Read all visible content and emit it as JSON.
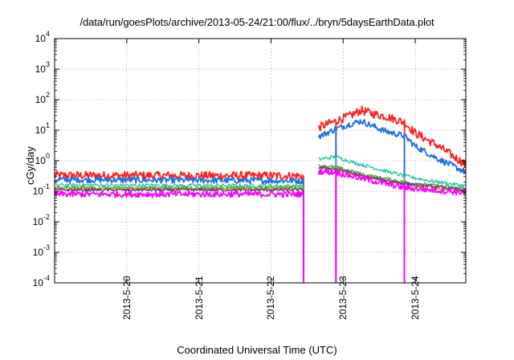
{
  "chart_data": {
    "type": "line",
    "title": "/data/run/goesPlots/archive/2013-05-24/21:00/flux/../bryn/5daysEarthData.plot",
    "xlabel": "Coordinated Universal Time (UTC)",
    "ylabel": "cGy/day",
    "yscale": "log",
    "ylim": [
      0.0001,
      10000
    ],
    "xlim": [
      0,
      5.7
    ],
    "grid": true,
    "y_ticks": [
      {
        "base": "10",
        "exp": "-4",
        "value": 0.0001
      },
      {
        "base": "10",
        "exp": "-3",
        "value": 0.001
      },
      {
        "base": "10",
        "exp": "-2",
        "value": 0.01
      },
      {
        "base": "10",
        "exp": "-1",
        "value": 0.1
      },
      {
        "base": "10",
        "exp": "0",
        "value": 1
      },
      {
        "base": "10",
        "exp": "1",
        "value": 10
      },
      {
        "base": "10",
        "exp": "2",
        "value": 100
      },
      {
        "base": "10",
        "exp": "3",
        "value": 1000
      },
      {
        "base": "10",
        "exp": "4",
        "value": 10000
      }
    ],
    "x_ticks": [
      {
        "label": "2013-5-20",
        "value": 1
      },
      {
        "label": "2013-5-21",
        "value": 2
      },
      {
        "label": "2013-5-22",
        "value": 3
      },
      {
        "label": "2013-5-23",
        "value": 4
      },
      {
        "label": "2013-5-24",
        "value": 5
      }
    ],
    "gap": {
      "start": 3.45,
      "end": 3.65
    },
    "dropouts": [
      3.45,
      3.9,
      4.85
    ],
    "series": [
      {
        "name": "red",
        "color": "#ff1f1f",
        "noise": 0.14,
        "points": [
          [
            0,
            0.33
          ],
          [
            3.45,
            0.32
          ],
          [
            3.65,
            12
          ],
          [
            3.9,
            20
          ],
          [
            4.1,
            30
          ],
          [
            4.25,
            45
          ],
          [
            4.4,
            35
          ],
          [
            4.6,
            28
          ],
          [
            4.85,
            18
          ],
          [
            5.0,
            8
          ],
          [
            5.3,
            3.2
          ],
          [
            5.7,
            0.75
          ]
        ]
      },
      {
        "name": "blue",
        "color": "#1f6fe0",
        "noise": 0.1,
        "points": [
          [
            0,
            0.24
          ],
          [
            3.45,
            0.22
          ],
          [
            3.65,
            6
          ],
          [
            3.9,
            11
          ],
          [
            4.1,
            16
          ],
          [
            4.25,
            20
          ],
          [
            4.4,
            14
          ],
          [
            4.6,
            9
          ],
          [
            4.85,
            6.5
          ],
          [
            5.0,
            3
          ],
          [
            5.3,
            1.2
          ],
          [
            5.7,
            0.42
          ]
        ]
      },
      {
        "name": "teal",
        "color": "#1fc8a0",
        "noise": 0.06,
        "points": [
          [
            0,
            0.16
          ],
          [
            3.45,
            0.15
          ],
          [
            3.65,
            1.1
          ],
          [
            3.9,
            1.35
          ],
          [
            4.2,
            0.8
          ],
          [
            4.6,
            0.45
          ],
          [
            4.85,
            0.32
          ],
          [
            5.2,
            0.22
          ],
          [
            5.7,
            0.15
          ]
        ]
      },
      {
        "name": "green",
        "color": "#4aa02a",
        "noise": 0.05,
        "points": [
          [
            0,
            0.13
          ],
          [
            3.45,
            0.13
          ],
          [
            3.65,
            0.7
          ],
          [
            3.9,
            0.62
          ],
          [
            4.3,
            0.35
          ],
          [
            4.85,
            0.2
          ],
          [
            5.7,
            0.12
          ]
        ]
      },
      {
        "name": "olive",
        "color": "#b0a000",
        "noise": 0.05,
        "points": [
          [
            0,
            0.12
          ],
          [
            3.45,
            0.12
          ],
          [
            3.65,
            0.55
          ],
          [
            3.9,
            0.5
          ],
          [
            4.3,
            0.3
          ],
          [
            4.85,
            0.17
          ],
          [
            5.7,
            0.1
          ]
        ]
      },
      {
        "name": "purple",
        "color": "#702a8c",
        "noise": 0.05,
        "points": [
          [
            0,
            0.11
          ],
          [
            3.45,
            0.11
          ],
          [
            3.65,
            0.6
          ],
          [
            3.9,
            0.55
          ],
          [
            4.3,
            0.3
          ],
          [
            4.85,
            0.18
          ],
          [
            5.7,
            0.11
          ]
        ]
      },
      {
        "name": "magenta",
        "color": "#ff00ff",
        "noise": 0.1,
        "points": [
          [
            0,
            0.08
          ],
          [
            3.45,
            0.08
          ],
          [
            3.65,
            0.45
          ],
          [
            3.9,
            0.42
          ],
          [
            4.3,
            0.25
          ],
          [
            4.85,
            0.13
          ],
          [
            5.7,
            0.09
          ]
        ]
      }
    ]
  }
}
